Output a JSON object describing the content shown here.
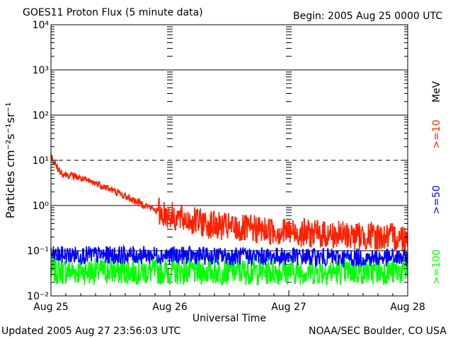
{
  "chart_data": {
    "type": "line",
    "title": "GOES11 Proton Flux (5 minute data)",
    "begin_label": "Begin: 2005 Aug 25 0000 UTC",
    "xlabel": "Universal Time",
    "ylabel": "Particles cm⁻²s⁻¹sr⁻¹",
    "y_scale": "log",
    "ylim": [
      0.01,
      10000
    ],
    "y_ticks": [
      "10⁻²",
      "10⁻¹",
      "10⁰",
      "10¹",
      "10²",
      "10³",
      "10⁴"
    ],
    "y_tick_values": [
      0.01,
      0.1,
      1,
      10,
      100,
      1000,
      10000
    ],
    "solid_gridlines": [
      0.1,
      1,
      100,
      1000
    ],
    "dashed_gridlines": [
      10
    ],
    "x_unit": "days since Aug 25 0000 UTC",
    "xlim": [
      0,
      3
    ],
    "x_ticks": [
      "Aug 25",
      "Aug 26",
      "Aug 27",
      "Aug 28"
    ],
    "x_tick_values": [
      0,
      1,
      2,
      3
    ],
    "grid": false,
    "series": [
      {
        "name": ">=10",
        "color": "#ff2000",
        "x": [
          0,
          0.05,
          0.1,
          0.2,
          0.3,
          0.4,
          0.5,
          0.6,
          0.7,
          0.8,
          0.9,
          1.0,
          1.1,
          1.2,
          1.3,
          1.4,
          1.5,
          1.6,
          1.7,
          1.8,
          1.9,
          2.0,
          2.1,
          2.2,
          2.3,
          2.4,
          2.5,
          2.6,
          2.7,
          2.8,
          2.9,
          3.0
        ],
        "values": [
          12,
          7,
          5,
          4.5,
          3.5,
          3,
          2.3,
          1.7,
          1.3,
          1.0,
          0.75,
          0.6,
          0.5,
          0.45,
          0.4,
          0.35,
          0.33,
          0.3,
          0.3,
          0.28,
          0.27,
          0.26,
          0.25,
          0.24,
          0.23,
          0.22,
          0.22,
          0.21,
          0.21,
          0.2,
          0.2,
          0.2
        ]
      },
      {
        "name": ">=50",
        "color": "#0000ff",
        "x": [
          0,
          0.5,
          1.0,
          1.5,
          2.0,
          2.5,
          3.0
        ],
        "values": [
          0.08,
          0.08,
          0.08,
          0.075,
          0.075,
          0.07,
          0.07
        ]
      },
      {
        "name": ">=100",
        "color": "#00ff00",
        "x": [
          0,
          0.5,
          1.0,
          1.5,
          2.0,
          2.5,
          3.0
        ],
        "values": [
          0.035,
          0.035,
          0.035,
          0.035,
          0.035,
          0.035,
          0.035
        ]
      }
    ],
    "energy_unit": "MeV",
    "footer_left": "Updated 2005 Aug 27 23:56:03 UTC",
    "footer_right": "NOAA/SEC Boulder, CO USA"
  }
}
